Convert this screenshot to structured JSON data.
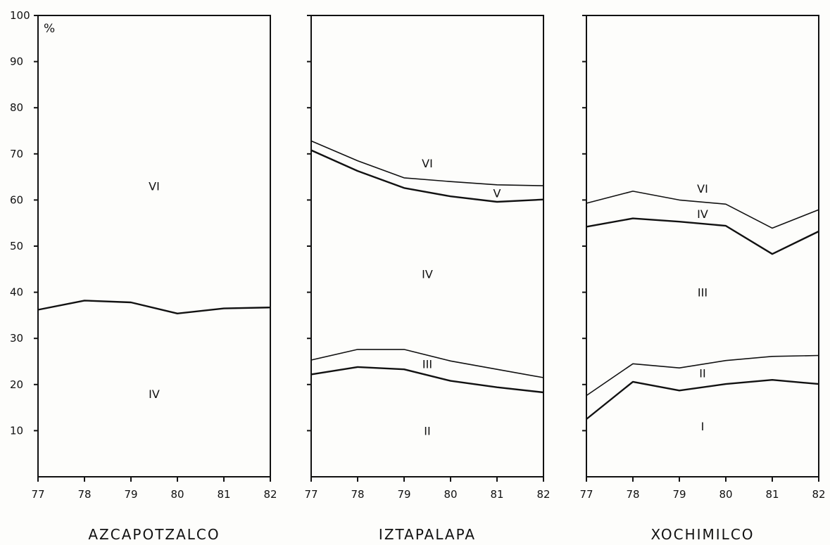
{
  "chart_data": [
    {
      "type": "area",
      "title": "AZCAPOTZALCO",
      "unit_label": "%",
      "x": [
        77,
        78,
        79,
        80,
        81,
        82
      ],
      "xticks": [
        "77",
        "78",
        "79",
        "80",
        "81",
        "82"
      ],
      "yticks": [
        "10",
        "20",
        "30",
        "40",
        "50",
        "60",
        "70",
        "80",
        "90",
        "100"
      ],
      "ylim": [
        0,
        100
      ],
      "boundaries": [
        [
          36.2,
          38.2,
          37.8,
          35.4,
          36.5,
          36.7
        ]
      ],
      "regions": [
        {
          "label": "IV",
          "x": 79.5,
          "y": 18
        },
        {
          "label": "VI",
          "x": 79.5,
          "y": 63
        }
      ]
    },
    {
      "type": "area",
      "title": "IZTAPALAPA",
      "x": [
        77,
        78,
        79,
        80,
        81,
        82
      ],
      "xticks": [
        "77",
        "78",
        "79",
        "80",
        "81",
        "82"
      ],
      "ylim": [
        0,
        100
      ],
      "boundaries": [
        [
          22.2,
          23.8,
          23.3,
          20.8,
          19.4,
          18.3
        ],
        [
          25.3,
          27.6,
          27.6,
          25.1,
          23.3,
          21.5
        ],
        [
          70.8,
          66.3,
          62.6,
          60.8,
          59.6,
          60.1
        ],
        [
          72.8,
          68.5,
          64.8,
          64.0,
          63.3,
          63.1
        ]
      ],
      "regions": [
        {
          "label": "II",
          "x": 79.5,
          "y": 10
        },
        {
          "label": "III",
          "x": 79.5,
          "y": 24.5
        },
        {
          "label": "IV",
          "x": 79.5,
          "y": 44
        },
        {
          "label": "V",
          "x": 81,
          "y": 61.5
        },
        {
          "label": "VI",
          "x": 79.5,
          "y": 68
        }
      ]
    },
    {
      "type": "area",
      "title": "XOCHIMILCO",
      "x": [
        77,
        78,
        79,
        80,
        81,
        82
      ],
      "xticks": [
        "77",
        "78",
        "79",
        "80",
        "81",
        "82"
      ],
      "ylim": [
        0,
        100
      ],
      "boundaries": [
        [
          12.5,
          20.6,
          18.7,
          20.1,
          21.0,
          20.1
        ],
        [
          17.6,
          24.5,
          23.6,
          25.2,
          26.1,
          26.3
        ],
        [
          54.2,
          56.0,
          55.3,
          54.4,
          48.3,
          53.2
        ],
        [
          59.3,
          61.9,
          60.0,
          59.1,
          53.9,
          57.9
        ]
      ],
      "regions": [
        {
          "label": "I",
          "x": 79.5,
          "y": 11
        },
        {
          "label": "II",
          "x": 79.5,
          "y": 22.5
        },
        {
          "label": "III",
          "x": 79.5,
          "y": 40
        },
        {
          "label": "IV",
          "x": 79.5,
          "y": 57
        },
        {
          "label": "VI",
          "x": 79.5,
          "y": 62.5
        }
      ]
    }
  ]
}
